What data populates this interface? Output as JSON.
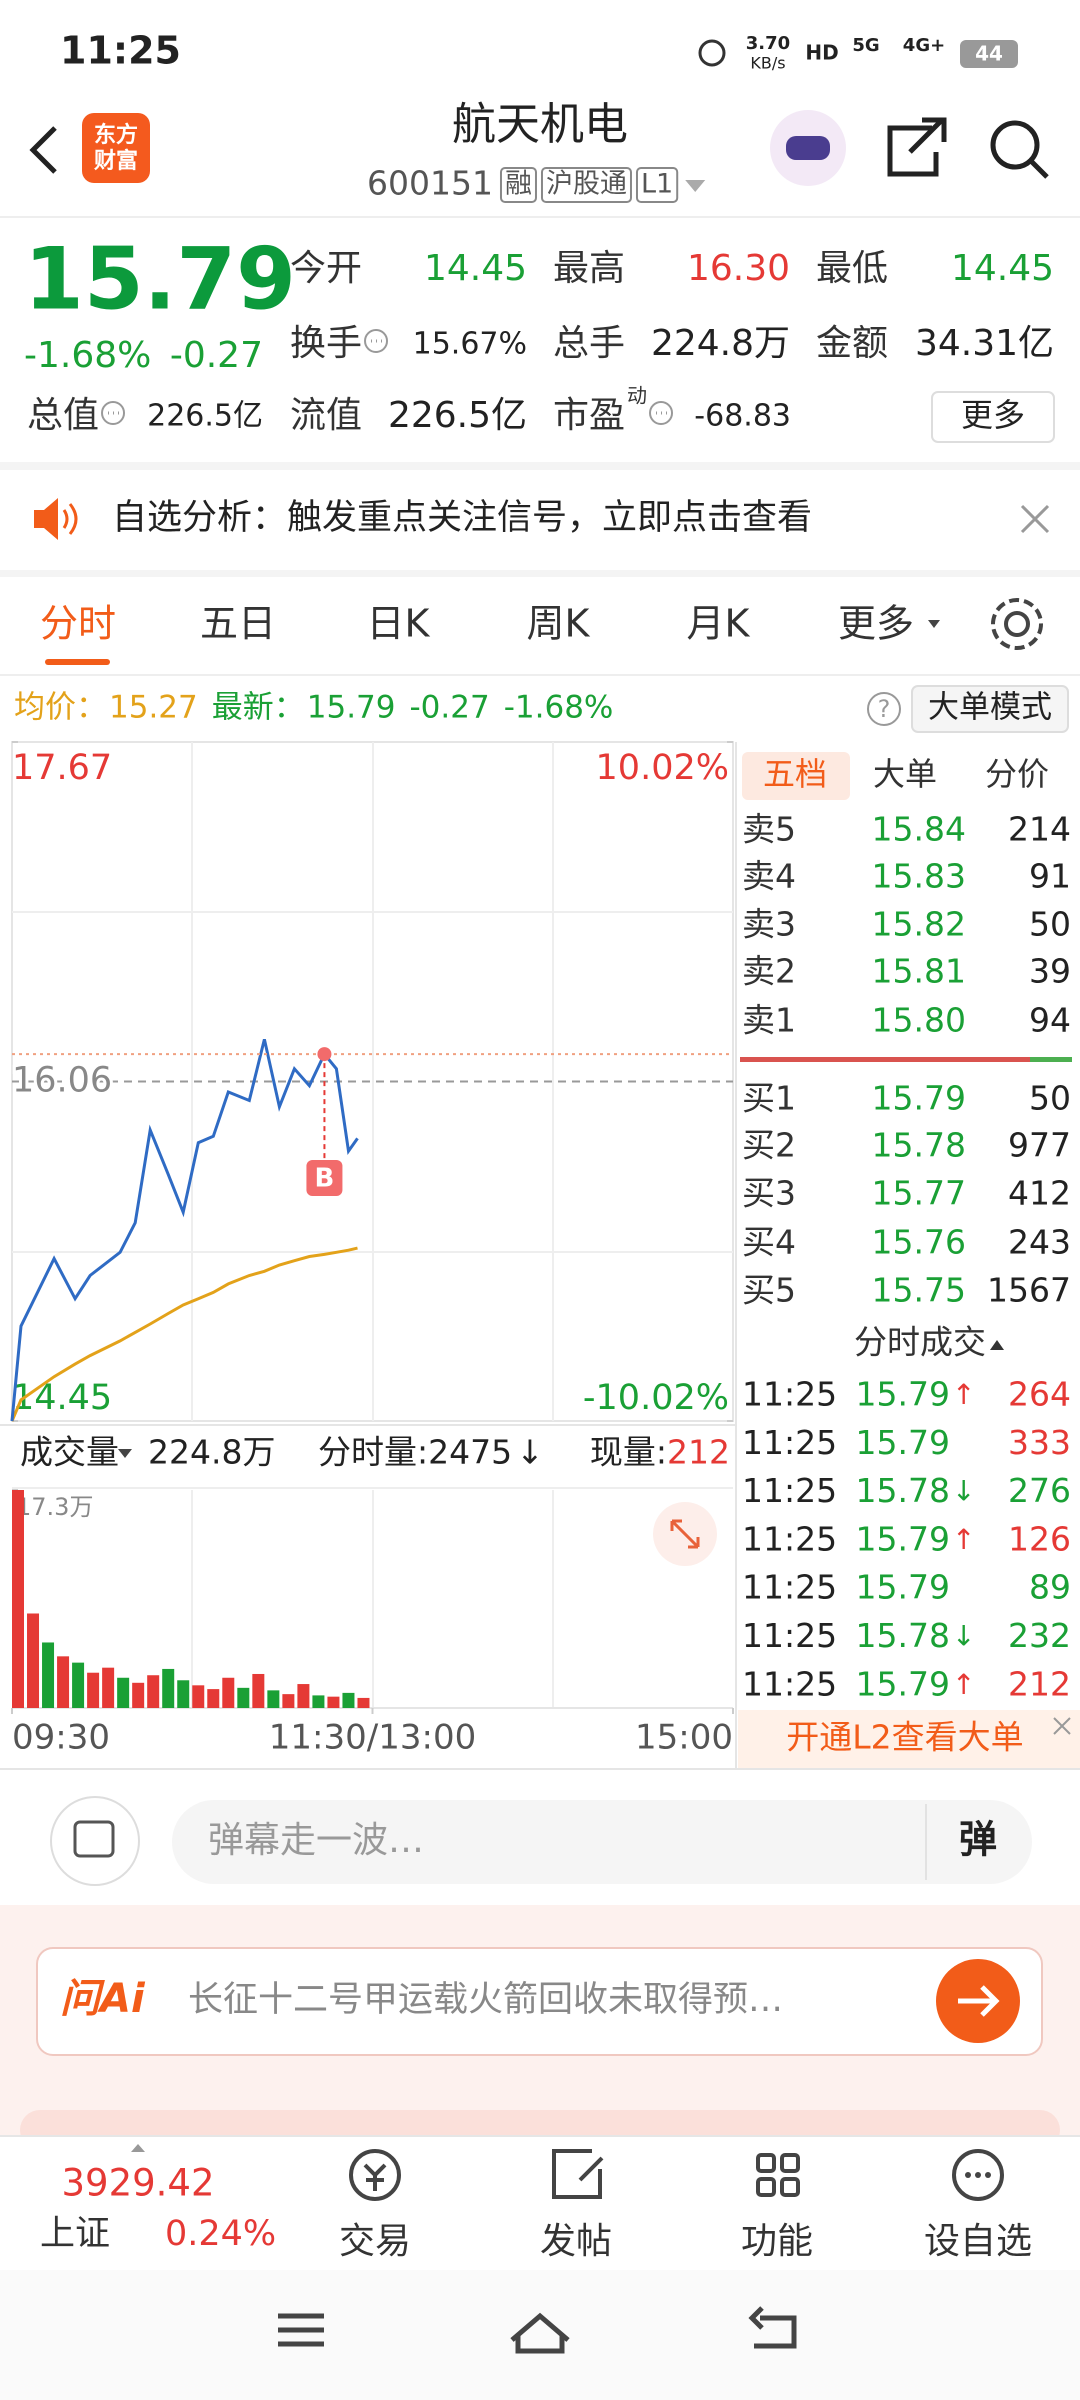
{
  "status_bar": {
    "time": "11:25",
    "speed": "3.70",
    "speed_unit": "KB/s",
    "hd": "HD",
    "net1": "5G",
    "net2": "4G+",
    "battery": "44"
  },
  "header": {
    "logo": [
      "东方",
      "财富"
    ],
    "title": "航天机电",
    "code": "600151",
    "tags": [
      "融",
      "沪股通",
      "L1"
    ]
  },
  "quote": {
    "price": "15.79",
    "change_pct": "-1.68%",
    "change": "-0.27",
    "more": "更多",
    "stats": [
      {
        "label": "今开",
        "value": "14.45",
        "color": "#1aa035"
      },
      {
        "label": "最高",
        "value": "16.30",
        "color": "#e53935"
      },
      {
        "label": "最低",
        "value": "14.45",
        "color": "#1aa035"
      },
      {
        "label": "换手",
        "value": "15.67%",
        "color": "#222222"
      },
      {
        "label": "总手",
        "value": "224.8万",
        "color": "#222222"
      },
      {
        "label": "金额",
        "value": "34.31亿",
        "color": "#222222"
      },
      {
        "label": "总值",
        "value": "226.5亿",
        "color": "#222222"
      },
      {
        "label": "流值",
        "value": "226.5亿",
        "color": "#222222"
      },
      {
        "label": "市盈",
        "sup": "动",
        "value": "-68.83",
        "color": "#222222"
      }
    ]
  },
  "notice": {
    "text": "自选分析：触发重点关注信号，立即点击查看"
  },
  "tabs": [
    "分时",
    "五日",
    "日K",
    "周K",
    "月K",
    "更多"
  ],
  "info_bar": {
    "avg_label": "均价：",
    "avg": "15.27",
    "latest_label": "最新：",
    "latest": "15.79",
    "change": "-0.27",
    "change_pct": "-1.68%",
    "help": "?",
    "mode": "大单模式"
  },
  "chart_data": [
    {
      "type": "line",
      "x": [
        0,
        3,
        14,
        21,
        26,
        36,
        41,
        46,
        52,
        57,
        62,
        67,
        72,
        79,
        84,
        89,
        94,
        99,
        104,
        108,
        112,
        115
      ],
      "xlim": [
        0,
        240
      ],
      "ylim": [
        14.45,
        17.67
      ],
      "yticks": [
        14.45,
        16.06,
        17.67
      ],
      "y2lim": [
        -10.02,
        10.02
      ],
      "y2ticks": [
        {
          "value": -10.02,
          "label": "-10.02%"
        },
        {
          "value": 10.02,
          "label": "10.02%"
        }
      ],
      "series": [
        {
          "color": "#2f6bc4",
          "values": [
            14.45,
            14.9,
            15.22,
            15.03,
            15.14,
            15.25,
            15.39,
            15.83,
            15.62,
            15.44,
            15.77,
            15.8,
            16.01,
            15.97,
            16.26,
            15.94,
            16.12,
            16.04,
            16.19,
            16.12,
            15.73,
            15.79
          ]
        },
        {
          "color": "#e3a21a",
          "values": [
            14.45,
            14.55,
            14.66,
            14.72,
            14.76,
            14.83,
            14.87,
            14.91,
            14.96,
            15.0,
            15.03,
            15.06,
            15.1,
            15.14,
            15.16,
            15.19,
            15.21,
            15.23,
            15.24,
            15.25,
            15.26,
            15.27
          ]
        }
      ],
      "trade_marker": "B"
    },
    {
      "type": "bar",
      "x": [
        0,
        5,
        10,
        15,
        20,
        25,
        30,
        35,
        40,
        45,
        50,
        55,
        60,
        65,
        70,
        75,
        80,
        85,
        90,
        95,
        100,
        105,
        110,
        115
      ],
      "values": [
        17.3,
        7.5,
        5.2,
        4.1,
        3.6,
        2.8,
        3.2,
        2.4,
        2.0,
        2.6,
        3.1,
        2.2,
        1.8,
        1.5,
        2.4,
        1.6,
        2.7,
        1.4,
        1.1,
        1.9,
        1.0,
        0.9,
        1.2,
        0.8
      ],
      "colors": [
        "#e53935",
        "#e53935",
        "#1aa035",
        "#e53935",
        "#1aa035",
        "#e53935",
        "#e53935",
        "#1aa035",
        "#e53935",
        "#e53935",
        "#1aa035",
        "#1aa035",
        "#e53935",
        "#e53935",
        "#e53935",
        "#1aa035",
        "#e53935",
        "#1aa035",
        "#e53935",
        "#e53935",
        "#1aa035",
        "#e53935",
        "#1aa035",
        "#e53935"
      ],
      "xlim": [
        0,
        240
      ],
      "xticks": [
        {
          "value": 0,
          "label": "09:30"
        },
        {
          "value": 120,
          "label": "11:30/13:00"
        },
        {
          "value": 240,
          "label": "15:00"
        }
      ],
      "ylim": [
        0,
        17.3
      ],
      "yticks": [
        {
          "value": 17.3,
          "label": "17.3万"
        }
      ]
    }
  ],
  "volume_bar": {
    "label": "成交量",
    "total": "224.8万",
    "minute": "分时量:2475",
    "minute_arrow": "↓",
    "current_label": "现量:",
    "current": "212"
  },
  "order_book": {
    "tabs": [
      "五档",
      "大单",
      "分价"
    ],
    "asks": [
      {
        "label": "卖5",
        "price": "15.84",
        "volume": "214"
      },
      {
        "label": "卖4",
        "price": "15.83",
        "volume": "91"
      },
      {
        "label": "卖3",
        "price": "15.82",
        "volume": "50"
      },
      {
        "label": "卖2",
        "price": "15.81",
        "volume": "39"
      },
      {
        "label": "卖1",
        "price": "15.80",
        "volume": "94"
      }
    ],
    "bids": [
      {
        "label": "买1",
        "price": "15.79",
        "volume": "50"
      },
      {
        "label": "买2",
        "price": "15.78",
        "volume": "977"
      },
      {
        "label": "买3",
        "price": "15.77",
        "volume": "412"
      },
      {
        "label": "买4",
        "price": "15.76",
        "volume": "243"
      },
      {
        "label": "买5",
        "price": "15.75",
        "volume": "1567"
      }
    ]
  },
  "trades": {
    "title": "分时成交",
    "rows": [
      {
        "time": "11:25",
        "price": "15.79",
        "dir": "↑",
        "volume": "264",
        "volume_color": "#e53935"
      },
      {
        "time": "11:25",
        "price": "15.79",
        "volume": "333",
        "volume_color": "#e53935"
      },
      {
        "time": "11:25",
        "price": "15.78",
        "dir": "↓",
        "volume": "276",
        "volume_color": "#1aa035"
      },
      {
        "time": "11:25",
        "price": "15.79",
        "dir": "↑",
        "volume": "126",
        "volume_color": "#e53935"
      },
      {
        "time": "11:25",
        "price": "15.79",
        "volume": "89",
        "volume_color": "#1aa035"
      },
      {
        "time": "11:25",
        "price": "15.78",
        "dir": "↓",
        "volume": "232",
        "volume_color": "#1aa035"
      },
      {
        "time": "11:25",
        "price": "15.79",
        "dir": "↑",
        "volume": "212",
        "volume_color": "#e53935"
      }
    ]
  },
  "l2_banner": "开通L2查看大单",
  "comment": {
    "placeholder": "弹幕走一波…",
    "button": "弹"
  },
  "ai": {
    "logo": "问Ai",
    "text": "长征十二号甲运载火箭回收未取得预…"
  },
  "bottom_nav": {
    "index_value": "3929.42",
    "index_name": "上证",
    "index_change": "0.24%",
    "items": [
      "交易",
      "发帖",
      "功能",
      "设自选"
    ]
  }
}
